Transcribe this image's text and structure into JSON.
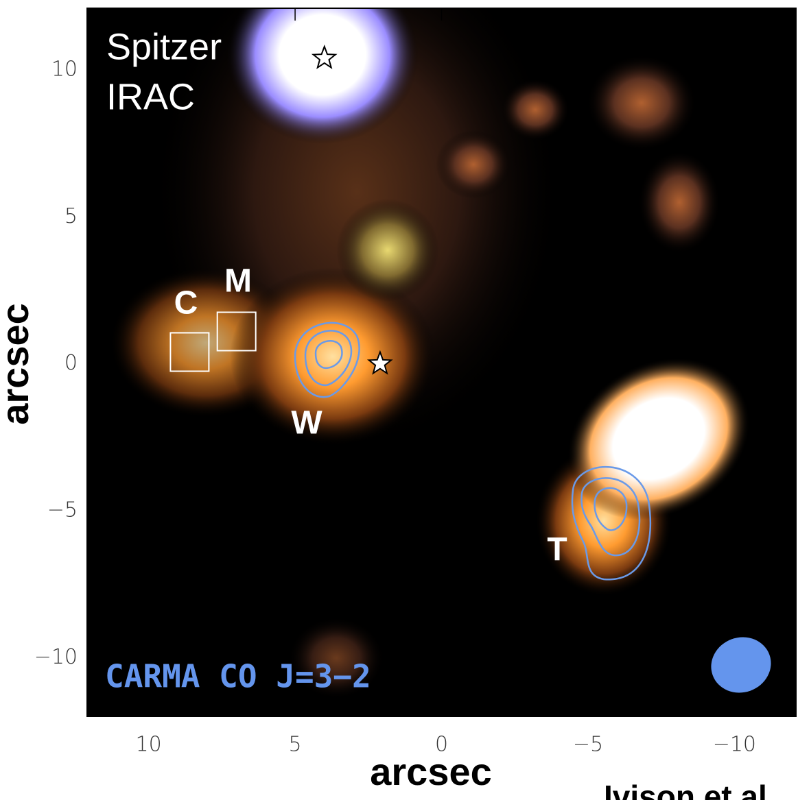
{
  "chart_data": {
    "type": "image",
    "xlabel": "arcsec",
    "ylabel": "arcsec",
    "xlim": [
      12.1,
      -12.1
    ],
    "ylim": [
      -12,
      12.1
    ],
    "xticks": [
      10,
      5,
      0,
      {
        "value": -5,
        "label": "−5"
      },
      {
        "value": -10,
        "label": "−10"
      }
    ],
    "yticks": [
      10,
      5,
      0,
      {
        "value": -5,
        "label": "−5"
      },
      {
        "value": -10,
        "label": "−10"
      }
    ],
    "annotations": [
      "Spitzer",
      "IRAC",
      "CARMA CO J=3−2"
    ],
    "source_labels": [
      "C",
      "M",
      "W",
      "T"
    ],
    "stars": {
      "x": [
        4,
        2.1
      ],
      "y": [
        10.4,
        0
      ]
    },
    "boxes": {
      "x": [
        8.6,
        7.0
      ],
      "y": [
        0.4,
        1.1
      ]
    },
    "credit": "Ivison et al"
  }
}
